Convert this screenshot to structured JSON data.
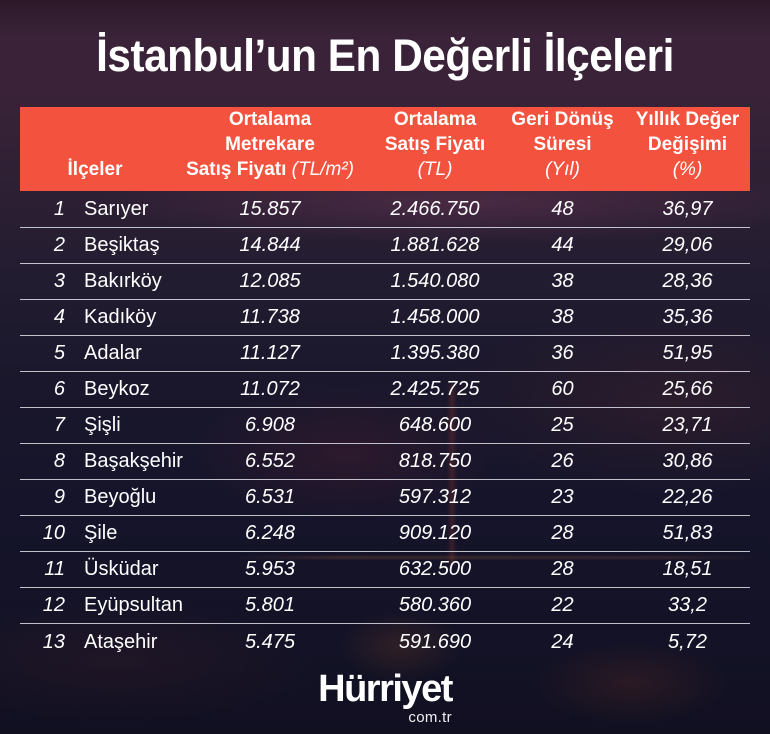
{
  "title": "İstanbul’un En Değerli İlçeleri",
  "chart_data": {
    "type": "table",
    "title": "İstanbul’un En Değerli İlçeleri",
    "columns": [
      {
        "label": "İlçeler",
        "lines": [
          "İlçeler"
        ],
        "unit": "",
        "unit_inline": false
      },
      {
        "label": "Ortalama Metrekare Satış Fiyatı (TL/m²)",
        "lines": [
          "Ortalama",
          "Metrekare",
          "Satış Fiyatı"
        ],
        "unit": "(TL/m²)",
        "unit_inline": true
      },
      {
        "label": "Ortalama Satış Fiyatı (TL)",
        "lines": [
          "Ortalama",
          "Satış Fiyatı"
        ],
        "unit": "(TL)",
        "unit_inline": false
      },
      {
        "label": "Geri Dönüş Süresi (Yıl)",
        "lines": [
          "Geri Dönüş",
          "Süresi"
        ],
        "unit": "(Yıl)",
        "unit_inline": false
      },
      {
        "label": "Yıllık Değer Değişimi (%)",
        "lines": [
          "Yıllık Değer",
          "Değişimi"
        ],
        "unit": "(%)",
        "unit_inline": false
      }
    ],
    "rows": [
      {
        "rank": "1",
        "district": "Sarıyer",
        "values": [
          "15.857",
          "2.466.750",
          "48",
          "36,97"
        ]
      },
      {
        "rank": "2",
        "district": "Beşiktaş",
        "values": [
          "14.844",
          "1.881.628",
          "44",
          "29,06"
        ]
      },
      {
        "rank": "3",
        "district": "Bakırköy",
        "values": [
          "12.085",
          "1.540.080",
          "38",
          "28,36"
        ]
      },
      {
        "rank": "4",
        "district": "Kadıköy",
        "values": [
          "11.738",
          "1.458.000",
          "38",
          "35,36"
        ]
      },
      {
        "rank": "5",
        "district": "Adalar",
        "values": [
          "11.127",
          "1.395.380",
          "36",
          "51,95"
        ]
      },
      {
        "rank": "6",
        "district": "Beykoz",
        "values": [
          "11.072",
          "2.425.725",
          "60",
          "25,66"
        ]
      },
      {
        "rank": "7",
        "district": "Şişli",
        "values": [
          "6.908",
          "648.600",
          "25",
          "23,71"
        ]
      },
      {
        "rank": "8",
        "district": "Başakşehir",
        "values": [
          "6.552",
          "818.750",
          "26",
          "30,86"
        ]
      },
      {
        "rank": "9",
        "district": "Beyoğlu",
        "values": [
          "6.531",
          "597.312",
          "23",
          "22,26"
        ]
      },
      {
        "rank": "10",
        "district": "Şile",
        "values": [
          "6.248",
          "909.120",
          "28",
          "51,83"
        ]
      },
      {
        "rank": "11",
        "district": "Üsküdar",
        "values": [
          "5.953",
          "632.500",
          "28",
          "18,51"
        ]
      },
      {
        "rank": "12",
        "district": "Eyüpsultan",
        "values": [
          "5.801",
          "580.360",
          "22",
          "33,2"
        ]
      },
      {
        "rank": "13",
        "district": "Ataşehir",
        "values": [
          "5.475",
          "591.690",
          "24",
          "5,72"
        ]
      }
    ]
  },
  "colors": {
    "header_bg": "#f3533e",
    "text": "#ffffff",
    "divider": "#dfdfe7",
    "background_top": "#3a2338",
    "background_bottom": "#111021"
  },
  "footer": {
    "brand": "Hürriyet",
    "domain": "com.tr"
  }
}
